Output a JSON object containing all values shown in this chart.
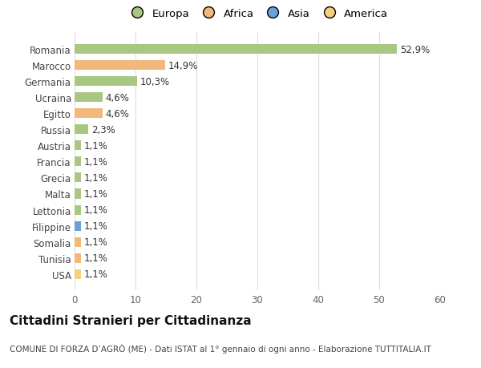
{
  "categories": [
    "Romania",
    "Marocco",
    "Germania",
    "Ucraina",
    "Egitto",
    "Russia",
    "Austria",
    "Francia",
    "Grecia",
    "Malta",
    "Lettonia",
    "Filippine",
    "Somalia",
    "Tunisia",
    "USA"
  ],
  "values": [
    52.9,
    14.9,
    10.3,
    4.6,
    4.6,
    2.3,
    1.1,
    1.1,
    1.1,
    1.1,
    1.1,
    1.1,
    1.1,
    1.1,
    1.1
  ],
  "labels": [
    "52,9%",
    "14,9%",
    "10,3%",
    "4,6%",
    "4,6%",
    "2,3%",
    "1,1%",
    "1,1%",
    "1,1%",
    "1,1%",
    "1,1%",
    "1,1%",
    "1,1%",
    "1,1%",
    "1,1%"
  ],
  "continent": [
    "Europa",
    "Africa",
    "Europa",
    "Europa",
    "Africa",
    "Europa",
    "Europa",
    "Europa",
    "Europa",
    "Europa",
    "Europa",
    "Asia",
    "Africa",
    "Africa",
    "America"
  ],
  "colors": {
    "Europa": "#a8c882",
    "Africa": "#f0b87a",
    "Asia": "#6a9fd8",
    "America": "#f5d07a"
  },
  "legend_items": [
    "Europa",
    "Africa",
    "Asia",
    "America"
  ],
  "legend_colors": [
    "#a8c882",
    "#f0b87a",
    "#6a9fd8",
    "#f5d07a"
  ],
  "xlim": [
    0,
    60
  ],
  "xticks": [
    0,
    10,
    20,
    30,
    40,
    50,
    60
  ],
  "title": "Cittadini Stranieri per Cittadinanza",
  "subtitle": "COMUNE DI FORZA D’AGRÒ (ME) - Dati ISTAT al 1° gennaio di ogni anno - Elaborazione TUTTITALIA.IT",
  "background_color": "#ffffff",
  "bar_height": 0.6,
  "grid_color": "#dddddd",
  "label_fontsize": 8.5,
  "tick_fontsize": 8.5,
  "title_fontsize": 11,
  "subtitle_fontsize": 7.5
}
